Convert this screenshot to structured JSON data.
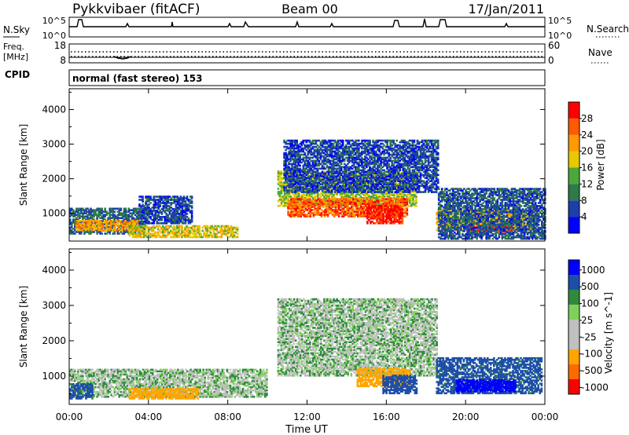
{
  "header": {
    "station": "Pykkvibaer (fitACF)",
    "beam": "Beam 00",
    "date": "17/Jan/2011"
  },
  "noise_panel": {
    "left_label": "N.Sky",
    "left_ticks": [
      "10^5",
      "10^0"
    ],
    "right_label": "N.Search",
    "right_ticks": [
      "10^5",
      "10^0"
    ]
  },
  "freq_panel": {
    "left_label_1": "Freq.",
    "left_label_2": "[MHz]",
    "left_ticks": [
      "18",
      "8"
    ],
    "right_label": "Nave",
    "right_ticks": [
      "60",
      "0"
    ]
  },
  "cpid_panel": {
    "label": "CPID",
    "text": "normal (fast stereo) 153"
  },
  "x_axis": {
    "label": "Time UT",
    "ticks": [
      "00:00",
      "04:00",
      "08:00",
      "12:00",
      "16:00",
      "20:00",
      "00:00"
    ]
  },
  "colors": {
    "power_scale": [
      "#0000ff",
      "#1d3fa8",
      "#2d7a4a",
      "#4aa83a",
      "#e8c800",
      "#ff9a00",
      "#ff5a00",
      "#ff0000"
    ],
    "velocity_scale": [
      "#ff0000",
      "#ff6a00",
      "#ffa500",
      "#c0c0c0",
      "#c0c0c0",
      "#7fd05a",
      "#2e8b3e",
      "#1e4fa8",
      "#0000ff"
    ]
  },
  "chart_data": [
    {
      "type": "heatmap",
      "title": "",
      "xlabel": "Time UT",
      "ylabel": "Slant Range [km]",
      "x_range_hours": [
        0,
        24
      ],
      "ylim": [
        200,
        4600
      ],
      "y_ticks": [
        1000,
        2000,
        3000,
        4000
      ],
      "colorbar": {
        "label": "Power [dB]",
        "ticks": [
          "4",
          "8",
          "12",
          "16",
          "20",
          "24",
          "28"
        ],
        "range": [
          0,
          32
        ]
      },
      "regions": [
        {
          "t0": 0.0,
          "t1": 3.8,
          "r0": 400,
          "r1": 1150,
          "value": 8
        },
        {
          "t0": 0.3,
          "t1": 3.5,
          "r0": 500,
          "r1": 800,
          "value": 22
        },
        {
          "t0": 3.0,
          "t1": 8.5,
          "r0": 300,
          "r1": 650,
          "value": 18
        },
        {
          "t0": 3.5,
          "t1": 6.2,
          "r0": 700,
          "r1": 1500,
          "value": 6
        },
        {
          "t0": 10.5,
          "t1": 17.5,
          "r0": 1200,
          "r1": 2200,
          "value": 16
        },
        {
          "t0": 11.0,
          "t1": 17.0,
          "r0": 900,
          "r1": 1400,
          "value": 26
        },
        {
          "t0": 15.0,
          "t1": 16.8,
          "r0": 700,
          "r1": 1200,
          "value": 30
        },
        {
          "t0": 10.8,
          "t1": 18.6,
          "r0": 1600,
          "r1": 3100,
          "value": 6
        },
        {
          "t0": 18.5,
          "t1": 23.5,
          "r0": 500,
          "r1": 1100,
          "value": 20
        },
        {
          "t0": 20.2,
          "t1": 22.3,
          "r0": 450,
          "r1": 700,
          "value": 28
        },
        {
          "t0": 18.6,
          "t1": 24.0,
          "r0": 250,
          "r1": 1700,
          "value": 7
        }
      ]
    },
    {
      "type": "heatmap",
      "title": "",
      "xlabel": "Time UT",
      "ylabel": "Slant Range [km]",
      "x_range_hours": [
        0,
        24
      ],
      "ylim": [
        200,
        4600
      ],
      "y_ticks": [
        1000,
        2000,
        3000,
        4000
      ],
      "colorbar": {
        "label": "Velocity [m s^-1]",
        "ticks": [
          "1000",
          "500",
          "100",
          "25",
          "-25",
          "-100",
          "-500",
          "-1000"
        ]
      },
      "regions": [
        {
          "t0": 0.0,
          "t1": 10.0,
          "r0": 400,
          "r1": 1200,
          "value": 0
        },
        {
          "t0": 3.0,
          "t1": 6.5,
          "r0": 350,
          "r1": 650,
          "value": -300
        },
        {
          "t0": 0.0,
          "t1": 1.2,
          "r0": 350,
          "r1": 800,
          "value": 150
        },
        {
          "t0": 10.5,
          "t1": 18.5,
          "r0": 1000,
          "r1": 3200,
          "value": 0
        },
        {
          "t0": 14.5,
          "t1": 17.2,
          "r0": 700,
          "r1": 1200,
          "value": -200
        },
        {
          "t0": 15.8,
          "t1": 17.5,
          "r0": 500,
          "r1": 1000,
          "value": 200
        },
        {
          "t0": 18.5,
          "t1": 23.8,
          "r0": 500,
          "r1": 1500,
          "value": 150
        },
        {
          "t0": 19.5,
          "t1": 22.5,
          "r0": 550,
          "r1": 900,
          "value": 700
        }
      ]
    }
  ]
}
